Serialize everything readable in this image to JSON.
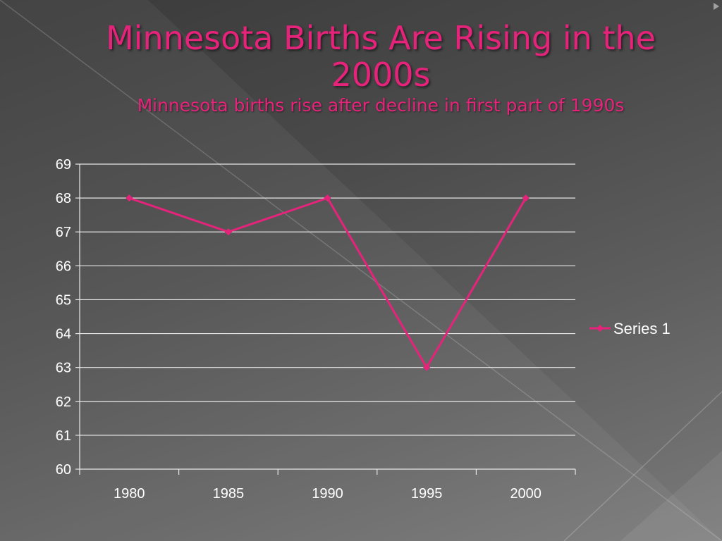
{
  "slide": {
    "title": "Minnesota Births Are Rising in the 2000s",
    "subtitle": "Minnesota births rise after decline in first part of 1990s"
  },
  "colors": {
    "series": "#e6237a",
    "text": "#ffffff",
    "grid": "#e8e8e8"
  },
  "chart_data": {
    "type": "line",
    "title": "Minnesota Births Are Rising in the 2000s",
    "subtitle": "Minnesota births rise after decline in first part of 1990s",
    "categories": [
      "1980",
      "1985",
      "1990",
      "1995",
      "2000"
    ],
    "series": [
      {
        "name": "Series 1",
        "values": [
          68,
          67,
          68,
          63,
          68
        ],
        "color": "#e6237a",
        "marker": "diamond"
      }
    ],
    "xlabel": "",
    "ylabel": "",
    "ylim": [
      60,
      69
    ],
    "yticks": [
      60,
      61,
      62,
      63,
      64,
      65,
      66,
      67,
      68,
      69
    ],
    "grid": true,
    "legend": "right"
  }
}
